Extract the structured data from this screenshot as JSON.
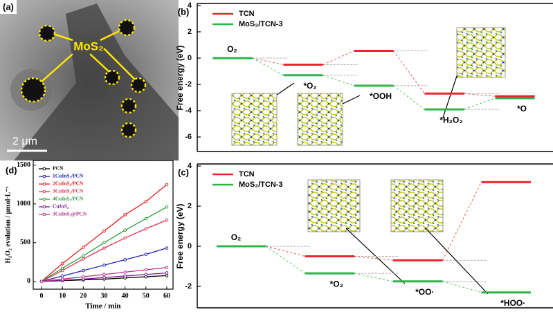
{
  "panel_a": {
    "label": "(a)",
    "annotation": "MoS₂",
    "scale_bar": "2 μm"
  },
  "chart_data": [
    {
      "type": "energy-diagram",
      "panel_label": "(b)",
      "y_label": "Free energy (eV)",
      "ylim": [
        -7,
        4
      ],
      "yticks": [
        4,
        2,
        0,
        -2,
        -4,
        -6
      ],
      "states": [
        "O₂",
        "*O₂",
        "*OOH",
        "*H₂O₂",
        "*O"
      ],
      "series": [
        {
          "name": "TCN",
          "color": "#e8262f",
          "values": [
            0,
            -0.5,
            0.55,
            -2.7,
            -2.9
          ]
        },
        {
          "name": "MoS₂/TCN-3",
          "color": "#2db34a",
          "values": [
            0,
            -1.3,
            -2.1,
            -3.9,
            -3.05
          ]
        }
      ]
    },
    {
      "type": "energy-diagram",
      "panel_label": "(c)",
      "y_label": "Free energy (eV)",
      "ylim": [
        -3,
        4
      ],
      "yticks": [
        4,
        2,
        0,
        -2
      ],
      "states": [
        "O₂",
        "*O₂",
        "*OO·",
        "*HOO·"
      ],
      "series": [
        {
          "name": "TCN",
          "color": "#e8262f",
          "values": [
            0,
            -0.5,
            -0.7,
            3.2
          ]
        },
        {
          "name": "MoS₂/TCN-3",
          "color": "#2db34a",
          "values": [
            0,
            -1.35,
            -1.75,
            -2.3
          ]
        }
      ]
    },
    {
      "type": "line",
      "panel_label": "(d)",
      "x_label": "Time / min",
      "y_label": "H₂O₂ evolution / μmol·L⁻¹",
      "x": [
        0,
        10,
        20,
        30,
        40,
        50,
        60
      ],
      "xlim": [
        -4,
        63
      ],
      "xticks": [
        0,
        10,
        20,
        30,
        40,
        50,
        60
      ],
      "ylim": [
        -100,
        1560
      ],
      "yticks": [
        0,
        500,
        1000,
        1500
      ],
      "series": [
        {
          "name": "PCN",
          "color": "#000000",
          "values": [
            0,
            10,
            20,
            30,
            45,
            60,
            75
          ]
        },
        {
          "name": "1CuInS₂/PCN",
          "color": "#1f1fa8",
          "values": [
            0,
            70,
            140,
            210,
            280,
            350,
            430
          ]
        },
        {
          "name": "2CuInS₂/PCN",
          "color": "#e31a1c",
          "values": [
            0,
            230,
            440,
            650,
            860,
            1030,
            1250
          ]
        },
        {
          "name": "3CuInS₂/PCN",
          "color": "#e0304f",
          "values": [
            0,
            140,
            290,
            430,
            560,
            680,
            790
          ]
        },
        {
          "name": "4CuInS₂/PCN",
          "color": "#2a9d3a",
          "values": [
            0,
            170,
            330,
            500,
            660,
            810,
            960
          ]
        },
        {
          "name": "CuInS₂",
          "color": "#7a1f8c",
          "values": [
            0,
            15,
            30,
            50,
            70,
            90,
            110
          ]
        },
        {
          "name": "3CuInS₂@PCN",
          "color": "#b5318f",
          "values": [
            0,
            30,
            60,
            90,
            120,
            150,
            180
          ]
        }
      ]
    }
  ]
}
